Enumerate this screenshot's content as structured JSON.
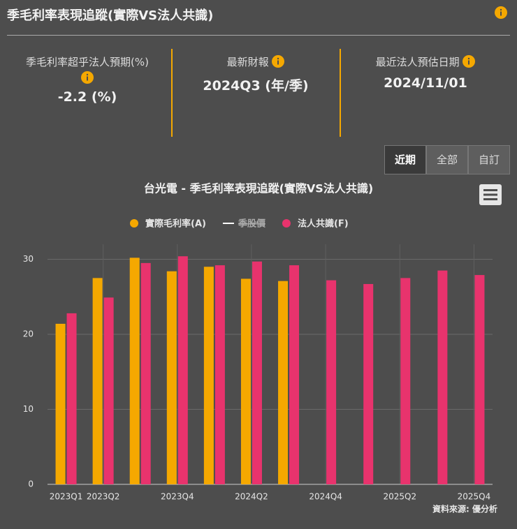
{
  "header": {
    "title": "季毛利率表現追蹤(實際VS法人共識)"
  },
  "stats": [
    {
      "label": "季毛利率超乎法人預期(%)",
      "value": "-2.2 (%)"
    },
    {
      "label": "最新財報",
      "value": "2024Q3 (年/季)"
    },
    {
      "label": "最近法人預估日期",
      "value": "2024/11/01"
    }
  ],
  "buttons": [
    "近期",
    "全部",
    "自訂"
  ],
  "chart_data": {
    "type": "bar",
    "title": "台光電 - 季毛利率表現追蹤(實際VS法人共識)",
    "categories": [
      "2023Q1",
      "2023Q2",
      null,
      "2023Q4",
      null,
      "2024Q2",
      null,
      "2024Q4",
      null,
      "2025Q2",
      null,
      "2025Q4"
    ],
    "series": [
      {
        "name": "實際毛利率(A)",
        "color": "#f5a800",
        "values": [
          21.4,
          27.5,
          30.2,
          28.4,
          29.0,
          27.4,
          27.1,
          null,
          null,
          null,
          null,
          null
        ]
      },
      {
        "name": "季股價",
        "color": "#ffffff",
        "hidden": true,
        "values": [
          null,
          null,
          null,
          null,
          null,
          null,
          null,
          null,
          null,
          null,
          null,
          null
        ]
      },
      {
        "name": "法人共識(F)",
        "color": "#e8336d",
        "values": [
          22.8,
          24.9,
          29.5,
          30.4,
          29.2,
          29.7,
          29.2,
          27.2,
          26.7,
          27.5,
          28.5,
          27.9
        ]
      }
    ],
    "ylim": [
      0,
      32
    ],
    "yticks": [
      0,
      10,
      20,
      30
    ],
    "grid": true,
    "source": "資料來源: 優分析"
  }
}
